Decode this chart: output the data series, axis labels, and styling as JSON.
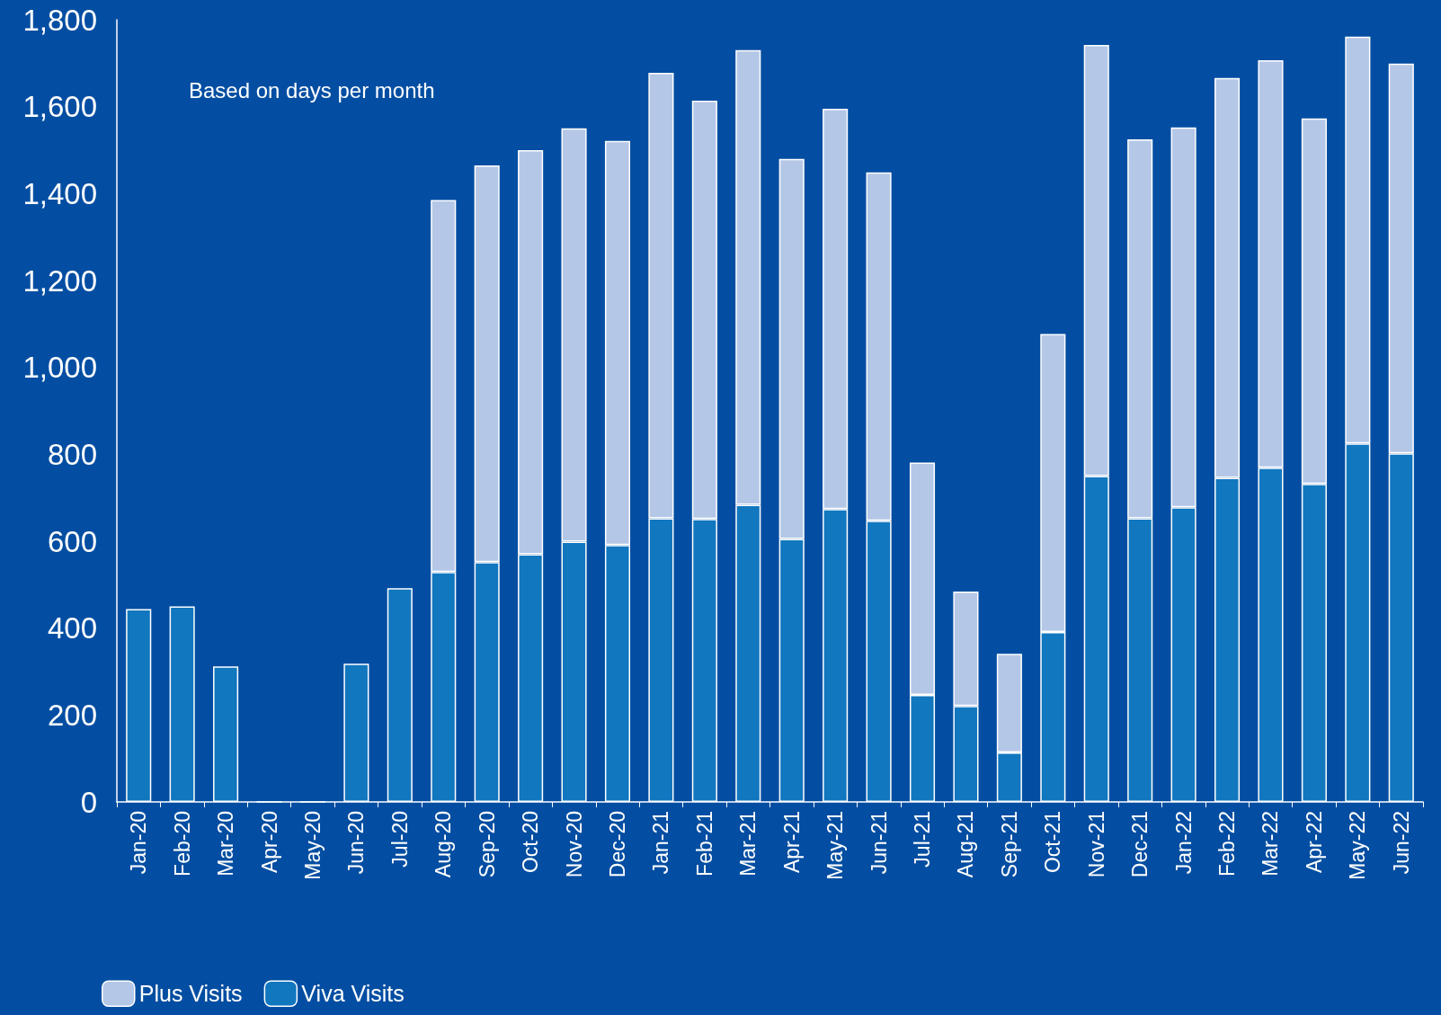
{
  "chart_data": {
    "type": "bar",
    "stacked": true,
    "categories": [
      "Jan-20",
      "Feb-20",
      "Mar-20",
      "Apr-20",
      "May-20",
      "Jun-20",
      "Jul-20",
      "Aug-20",
      "Sep-20",
      "Oct-20",
      "Nov-20",
      "Dec-20",
      "Jan-21",
      "Feb-21",
      "Mar-21",
      "Apr-21",
      "May-21",
      "Jun-21",
      "Jul-21",
      "Aug-21",
      "Sep-21",
      "Oct-21",
      "Nov-21",
      "Dec-21",
      "Jan-22",
      "Feb-22",
      "Mar-22",
      "Apr-22",
      "May-22",
      "Jun-22"
    ],
    "series": [
      {
        "name": "Viva Visits",
        "color": "#1177bf",
        "values": [
          444,
          450,
          312,
          0,
          0,
          318,
          492,
          529,
          552,
          570,
          599,
          591,
          653,
          651,
          684,
          605,
          674,
          647,
          246,
          221,
          114,
          391,
          750,
          653,
          678,
          746,
          769,
          732,
          825,
          802
        ]
      },
      {
        "name": "Plus Visits",
        "color": "#b4c7e7",
        "values": [
          null,
          null,
          null,
          null,
          null,
          null,
          null,
          856,
          913,
          930,
          951,
          930,
          1025,
          963,
          1046,
          875,
          921,
          802,
          535,
          263,
          227,
          686,
          992,
          872,
          874,
          920,
          938,
          841,
          936,
          897
        ]
      }
    ],
    "ylim": [
      0,
      1800
    ],
    "yticks": [
      0,
      200,
      400,
      600,
      800,
      {
        "value": 1000,
        "label": "1,000"
      },
      {
        "value": 1200,
        "label": "1,200"
      },
      {
        "value": 1400,
        "label": "1,400"
      },
      {
        "value": 1600,
        "label": "1,600"
      },
      {
        "value": 1800,
        "label": "1,800"
      }
    ],
    "grid": false,
    "legend": "bottom left",
    "annotations": [
      "Based on days per month"
    ]
  }
}
